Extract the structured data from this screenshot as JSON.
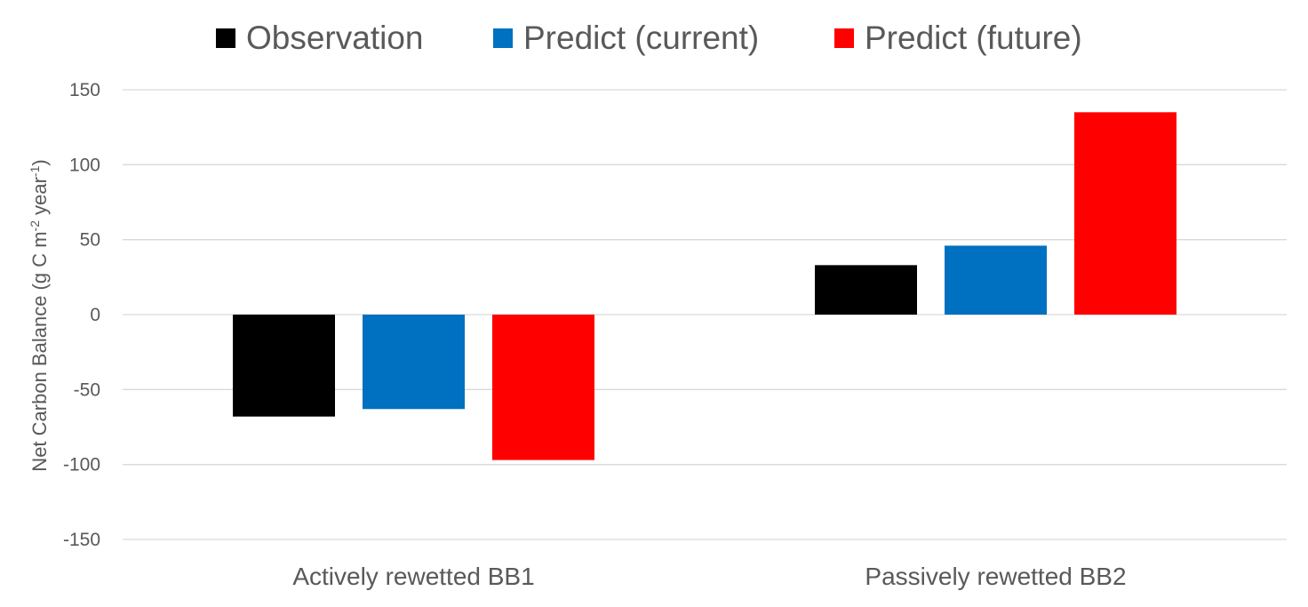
{
  "chart_data": {
    "type": "bar",
    "categories": [
      "Actively rewetted BB1",
      "Passively rewetted BB2"
    ],
    "series": [
      {
        "name": "Observation",
        "color": "#000000",
        "values": [
          -68,
          33
        ]
      },
      {
        "name": "Predict (current)",
        "color": "#0070c0",
        "values": [
          -63,
          46
        ]
      },
      {
        "name": "Predict (future)",
        "color": "#ff0000",
        "values": [
          -97,
          135
        ]
      }
    ],
    "title": "",
    "xlabel": "",
    "ylabel": {
      "main": "Net Carbon Balance (g C m",
      "sup1": "-2",
      "mid": " year",
      "sup2": "-1",
      "end": ")"
    },
    "ylim": [
      -150,
      150
    ],
    "yticks": [
      150,
      100,
      50,
      0,
      -50,
      -100,
      -150
    ],
    "grid": true,
    "legend": "top"
  }
}
